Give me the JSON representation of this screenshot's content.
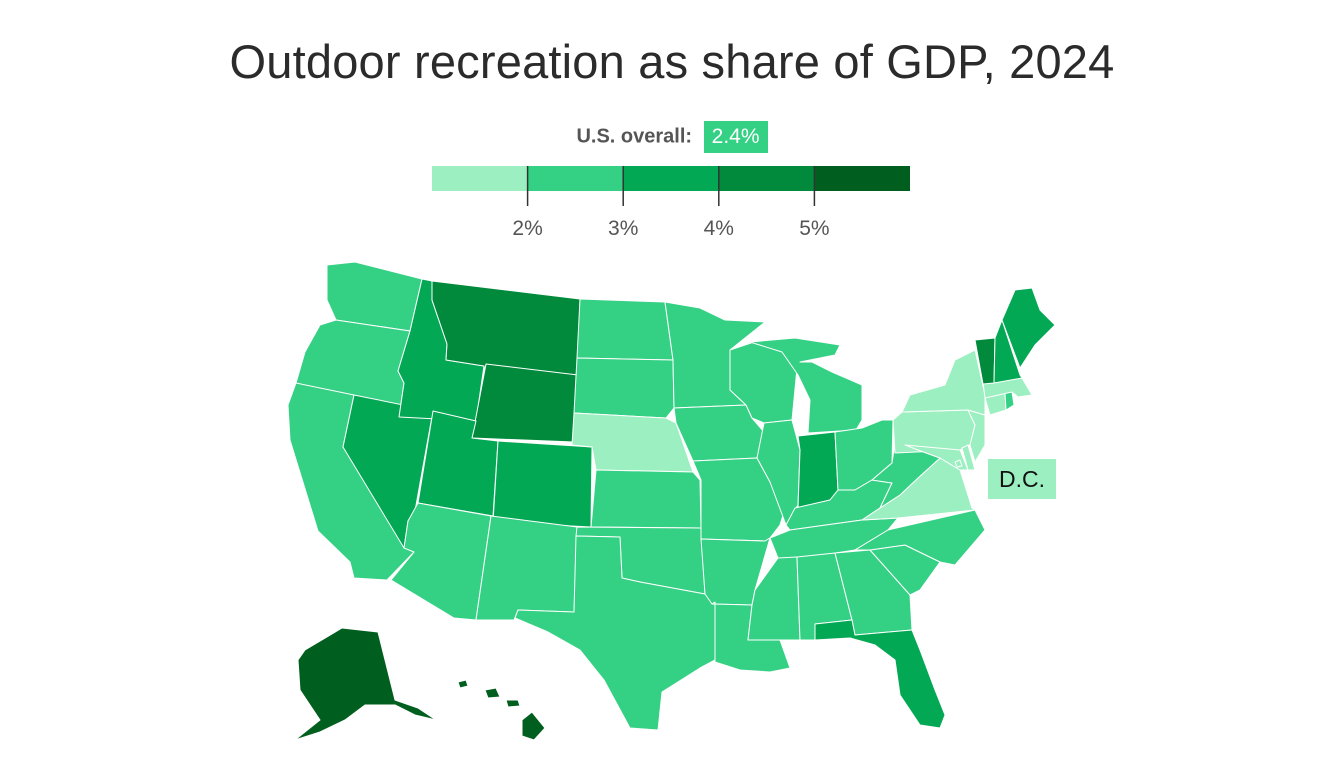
{
  "title": "Outdoor recreation as share of GDP, 2024",
  "overall": {
    "label": "U.S. overall:",
    "value": "2.4%"
  },
  "colors": {
    "bin1": "#9cefc0",
    "bin2": "#34d084",
    "bin3": "#03a854",
    "bin4": "#028a3c",
    "bin5": "#005f1e"
  },
  "legend": {
    "tick_labels": [
      "2%",
      "3%",
      "4%",
      "5%"
    ],
    "bins": [
      "bin1",
      "bin2",
      "bin3",
      "bin4",
      "bin5"
    ]
  },
  "dc_label": "D.C.",
  "states": {
    "WA": "bin2",
    "OR": "bin2",
    "CA": "bin2",
    "NV": "bin3",
    "ID": "bin3",
    "MT": "bin4",
    "WY": "bin4",
    "UT": "bin3",
    "AZ": "bin2",
    "CO": "bin3",
    "NM": "bin2",
    "ND": "bin2",
    "SD": "bin2",
    "NE": "bin1",
    "KS": "bin2",
    "OK": "bin2",
    "TX": "bin2",
    "MN": "bin2",
    "IA": "bin2",
    "MO": "bin2",
    "AR": "bin2",
    "LA": "bin2",
    "WI": "bin2",
    "IL": "bin2",
    "MI": "bin2",
    "IN": "bin3",
    "OH": "bin2",
    "KY": "bin2",
    "TN": "bin2",
    "MS": "bin2",
    "AL": "bin2",
    "GA": "bin2",
    "FL": "bin3",
    "SC": "bin2",
    "NC": "bin2",
    "VA": "bin1",
    "WV": "bin2",
    "PA": "bin1",
    "NY": "bin1",
    "VT": "bin4",
    "NH": "bin3",
    "ME": "bin3",
    "MA": "bin1",
    "CT": "bin1",
    "RI": "bin2",
    "NJ": "bin1",
    "DE": "bin1",
    "MD": "bin1",
    "DC": "bin1",
    "AK": "bin5",
    "HI": "bin5"
  }
}
